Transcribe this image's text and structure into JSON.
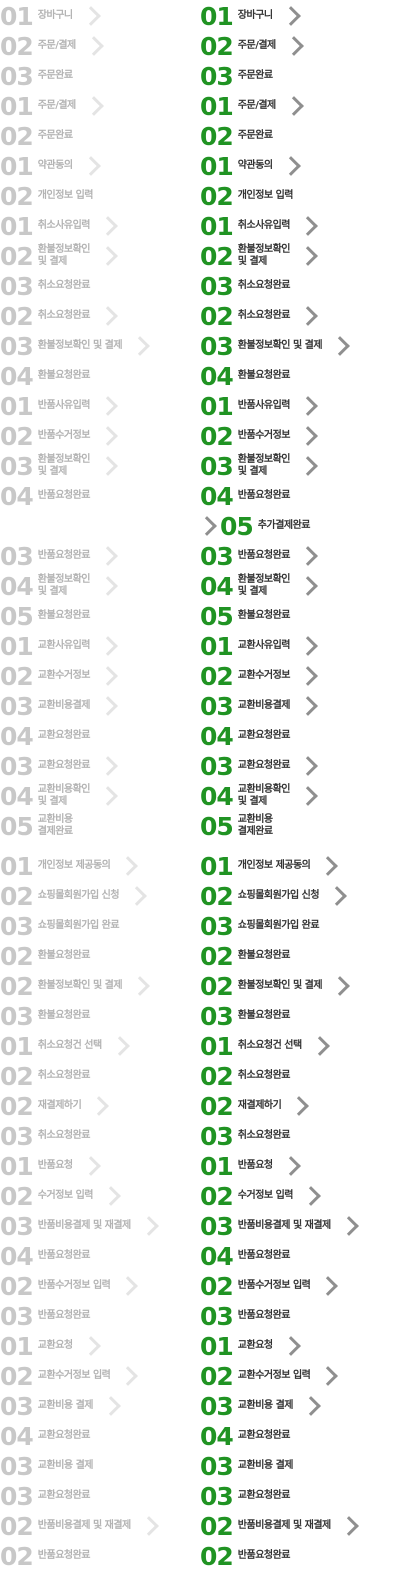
{
  "colors": {
    "inactive_number": "#c8c8c8",
    "inactive_label": "#b3b3b3",
    "inactive_arrow": "#e4e4e4",
    "active_number": "#209323",
    "active_label": "#333333",
    "active_arrow": "#8f8f8f"
  },
  "icons": {
    "arrow": "chevron-right-icon"
  },
  "rows": [
    {
      "num": "01",
      "text": "장바구니",
      "arrow": true
    },
    {
      "num": "02",
      "text": "주문/결제",
      "arrow": true
    },
    {
      "num": "03",
      "text": "주문완료",
      "arrow": false
    },
    {
      "num": "01",
      "text": "주문/결제",
      "arrow": true
    },
    {
      "num": "02",
      "text": "주문완료",
      "arrow": false
    },
    {
      "num": "01",
      "text": "약관동의",
      "arrow": true
    },
    {
      "num": "02",
      "text": "개인정보 입력",
      "arrow": false
    },
    {
      "num": "01",
      "text": "취소사유입력",
      "arrow": true
    },
    {
      "num": "02",
      "text": "환불정보확인\n및 결제",
      "arrow": true
    },
    {
      "num": "03",
      "text": "취소요청완료",
      "arrow": false
    },
    {
      "num": "02",
      "text": "취소요청완료",
      "arrow": true
    },
    {
      "num": "03",
      "text": "환불정보확인 및 결제",
      "arrow": true
    },
    {
      "num": "04",
      "text": "환불요청완료",
      "arrow": false
    },
    {
      "num": "01",
      "text": "반품사유입력",
      "arrow": true
    },
    {
      "num": "02",
      "text": "반품수거정보",
      "arrow": true
    },
    {
      "num": "03",
      "text": "환불정보확인\n및 결제",
      "arrow": true
    },
    {
      "num": "04",
      "text": "반품요청완료",
      "arrow": false
    },
    {
      "num": "03",
      "text": "반품요청완료",
      "arrow": true
    },
    {
      "num": "04",
      "text": "환불정보확인\n및 결제",
      "arrow": true
    },
    {
      "num": "05",
      "text": "환불요청완료",
      "arrow": false
    },
    {
      "num": "01",
      "text": "교환사유입력",
      "arrow": true
    },
    {
      "num": "02",
      "text": "교환수거정보",
      "arrow": true
    },
    {
      "num": "03",
      "text": "교환비용결제",
      "arrow": true
    },
    {
      "num": "04",
      "text": "교환요청완료",
      "arrow": false
    },
    {
      "num": "03",
      "text": "교환요청완료",
      "arrow": true
    },
    {
      "num": "04",
      "text": "교환비용확인\n및 결제",
      "arrow": true
    },
    {
      "num": "05",
      "text": "교환비용\n결제완료",
      "arrow": false
    },
    {
      "num": "01",
      "text": "개인정보 제공동의",
      "arrow": true
    },
    {
      "num": "02",
      "text": "쇼핑몰회원가입 신청",
      "arrow": true
    },
    {
      "num": "03",
      "text": "쇼핑몰회원가입 완료",
      "arrow": false
    },
    {
      "num": "02",
      "text": "환불요청완료",
      "arrow": false
    },
    {
      "num": "02",
      "text": "환불정보확인 및 결제",
      "arrow": true
    },
    {
      "num": "03",
      "text": "환불요청완료",
      "arrow": false
    },
    {
      "num": "01",
      "text": "취소요청건 선택",
      "arrow": true
    },
    {
      "num": "02",
      "text": "취소요청완료",
      "arrow": false
    },
    {
      "num": "02",
      "text": "재결제하기",
      "arrow": true
    },
    {
      "num": "03",
      "text": "취소요청완료",
      "arrow": false
    },
    {
      "num": "01",
      "text": "반품요청",
      "arrow": true
    },
    {
      "num": "02",
      "text": "수거정보 입력",
      "arrow": true
    },
    {
      "num": "03",
      "text": "반품비용결제 및 재결제",
      "arrow": true
    },
    {
      "num": "04",
      "text": "반품요청완료",
      "arrow": false
    },
    {
      "num": "02",
      "text": "반품수거정보 입력",
      "arrow": true
    },
    {
      "num": "03",
      "text": "반품요청완료",
      "arrow": false
    },
    {
      "num": "01",
      "text": "교환요청",
      "arrow": true
    },
    {
      "num": "02",
      "text": "교환수거정보 입력",
      "arrow": true
    },
    {
      "num": "03",
      "text": "교환비용 결제",
      "arrow": true
    },
    {
      "num": "04",
      "text": "교환요청완료",
      "arrow": false
    },
    {
      "num": "03",
      "text": "교환비용 결제",
      "arrow": false
    },
    {
      "num": "03",
      "text": "교환요청완료",
      "arrow": false
    },
    {
      "num": "02",
      "text": "반품비용결제 및 재결제",
      "arrow": true
    },
    {
      "num": "02",
      "text": "반품요청완료",
      "arrow": false
    }
  ],
  "extra_active_row": {
    "num": "05",
    "text": "추가결제완료",
    "leading_arrow": true
  }
}
